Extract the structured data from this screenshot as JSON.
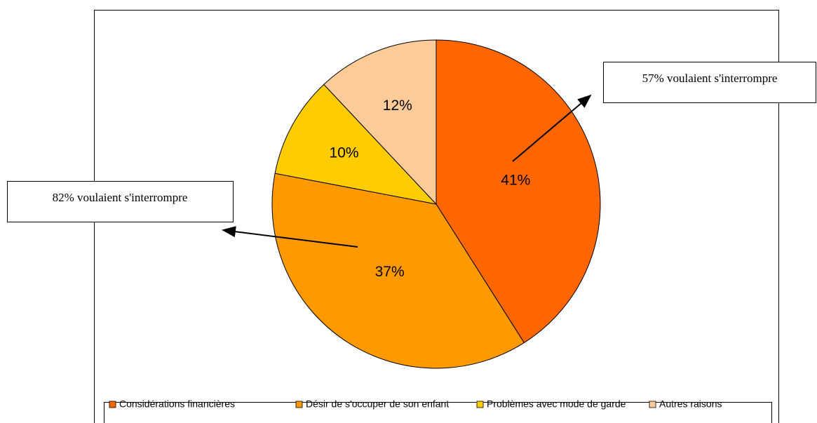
{
  "chart_data": {
    "type": "pie",
    "categories": [
      "Considérations financières",
      "Désir de s'occuper de son enfant",
      "Problèmes avec mode de garde",
      "Autres raisons"
    ],
    "values": [
      41,
      37,
      10,
      12
    ],
    "value_labels": [
      "41%",
      "37%",
      "10%",
      "12%"
    ],
    "colors": [
      "#FF6600",
      "#FF9900",
      "#FFCC00",
      "#FFCC99"
    ],
    "legend": "bottom",
    "annotations": [
      {
        "text": "57% voulaient s'interrompre"
      },
      {
        "text": "82% voulaient s'interrompre"
      }
    ]
  }
}
